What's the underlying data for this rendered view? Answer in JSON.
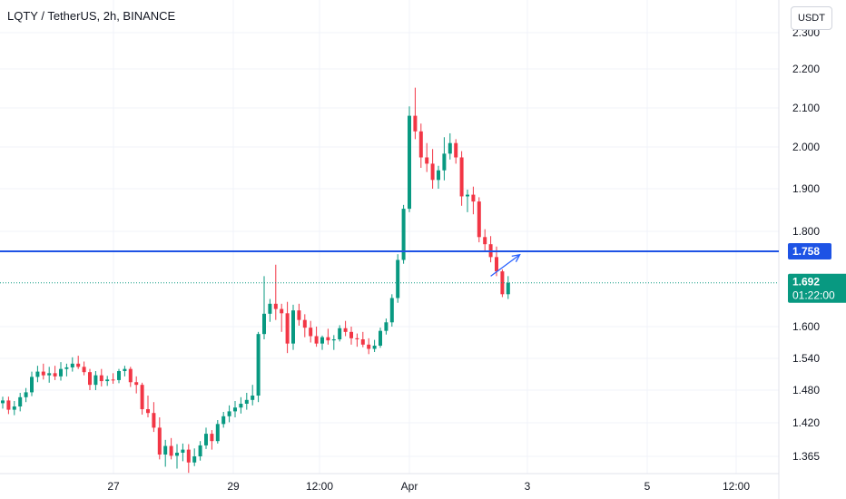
{
  "header": {
    "title": "LQTY / TetherUS, 2h, BINANCE",
    "currency": "USDT"
  },
  "chart_data": {
    "type": "candlestick",
    "symbol": "LQTY / TetherUS",
    "interval": "2h",
    "exchange": "BINANCE",
    "y_ticks": [
      "2.300",
      "2.200",
      "2.100",
      "2.000",
      "1.900",
      "1.800",
      "1.600",
      "1.540",
      "1.480",
      "1.420",
      "1.365"
    ],
    "x_ticks": [
      "27",
      "29",
      "12:00",
      "Apr",
      "3",
      "5",
      "12:00"
    ],
    "ylim": [
      1.345,
      2.31
    ],
    "grid": true,
    "horizontal_line": {
      "value": 1.758,
      "label": "1.758",
      "color": "#1e53e5"
    },
    "current_price": {
      "value": 1.692,
      "label": "1.692",
      "countdown": "01:22:00",
      "color": "#089981"
    },
    "projection_arrow": {
      "from": {
        "index": 84,
        "price": 1.706
      },
      "to": {
        "index": 89,
        "price": 1.751
      }
    },
    "colors": {
      "up": "#089981",
      "down": "#f23645"
    },
    "candles": [
      [
        1.456,
        1.468,
        1.446,
        1.461
      ],
      [
        1.461,
        1.468,
        1.436,
        1.444
      ],
      [
        1.444,
        1.46,
        1.434,
        1.45
      ],
      [
        1.45,
        1.475,
        1.441,
        1.467
      ],
      [
        1.467,
        1.484,
        1.458,
        1.476
      ],
      [
        1.476,
        1.515,
        1.469,
        1.505
      ],
      [
        1.505,
        1.526,
        1.495,
        1.515
      ],
      [
        1.515,
        1.53,
        1.5,
        1.508
      ],
      [
        1.508,
        1.524,
        1.494,
        1.512
      ],
      [
        1.512,
        1.526,
        1.499,
        1.506
      ],
      [
        1.506,
        1.533,
        1.498,
        1.52
      ],
      [
        1.52,
        1.53,
        1.506,
        1.523
      ],
      [
        1.523,
        1.542,
        1.515,
        1.53
      ],
      [
        1.53,
        1.545,
        1.52,
        1.524
      ],
      [
        1.524,
        1.534,
        1.508,
        1.514
      ],
      [
        1.514,
        1.52,
        1.48,
        1.49
      ],
      [
        1.49,
        1.516,
        1.48,
        1.508
      ],
      [
        1.508,
        1.52,
        1.487,
        1.497
      ],
      [
        1.497,
        1.507,
        1.488,
        1.5
      ],
      [
        1.5,
        1.512,
        1.492,
        1.499
      ],
      [
        1.499,
        1.52,
        1.493,
        1.516
      ],
      [
        1.516,
        1.526,
        1.506,
        1.52
      ],
      [
        1.52,
        1.524,
        1.486,
        1.495
      ],
      [
        1.495,
        1.506,
        1.474,
        1.49
      ],
      [
        1.49,
        1.494,
        1.435,
        1.445
      ],
      [
        1.445,
        1.47,
        1.43,
        1.438
      ],
      [
        1.438,
        1.458,
        1.405,
        1.412
      ],
      [
        1.412,
        1.43,
        1.36,
        1.368
      ],
      [
        1.368,
        1.392,
        1.348,
        1.382
      ],
      [
        1.382,
        1.395,
        1.36,
        1.366
      ],
      [
        1.366,
        1.385,
        1.345,
        1.371
      ],
      [
        1.371,
        1.386,
        1.357,
        1.376
      ],
      [
        1.376,
        1.385,
        1.338,
        1.355
      ],
      [
        1.355,
        1.378,
        1.349,
        1.365
      ],
      [
        1.365,
        1.39,
        1.358,
        1.383
      ],
      [
        1.383,
        1.412,
        1.377,
        1.402
      ],
      [
        1.402,
        1.408,
        1.376,
        1.39
      ],
      [
        1.39,
        1.425,
        1.386,
        1.418
      ],
      [
        1.418,
        1.44,
        1.412,
        1.432
      ],
      [
        1.432,
        1.452,
        1.421,
        1.441
      ],
      [
        1.441,
        1.46,
        1.43,
        1.448
      ],
      [
        1.448,
        1.467,
        1.437,
        1.455
      ],
      [
        1.455,
        1.475,
        1.444,
        1.462
      ],
      [
        1.462,
        1.49,
        1.452,
        1.47
      ],
      [
        1.47,
        1.59,
        1.458,
        1.586
      ],
      [
        1.586,
        1.706,
        1.576,
        1.627
      ],
      [
        1.627,
        1.658,
        1.61,
        1.648
      ],
      [
        1.648,
        1.73,
        1.614,
        1.637
      ],
      [
        1.637,
        1.648,
        1.59,
        1.628
      ],
      [
        1.628,
        1.652,
        1.55,
        1.568
      ],
      [
        1.568,
        1.646,
        1.556,
        1.634
      ],
      [
        1.634,
        1.648,
        1.602,
        1.614
      ],
      [
        1.614,
        1.626,
        1.58,
        1.598
      ],
      [
        1.598,
        1.612,
        1.57,
        1.582
      ],
      [
        1.582,
        1.6,
        1.562,
        1.568
      ],
      [
        1.568,
        1.583,
        1.556,
        1.58
      ],
      [
        1.58,
        1.596,
        1.566,
        1.574
      ],
      [
        1.574,
        1.584,
        1.556,
        1.576
      ],
      [
        1.576,
        1.603,
        1.572,
        1.597
      ],
      [
        1.597,
        1.612,
        1.582,
        1.59
      ],
      [
        1.59,
        1.6,
        1.566,
        1.578
      ],
      [
        1.578,
        1.587,
        1.562,
        1.576
      ],
      [
        1.576,
        1.59,
        1.561,
        1.566
      ],
      [
        1.566,
        1.578,
        1.548,
        1.558
      ],
      [
        1.558,
        1.575,
        1.552,
        1.564
      ],
      [
        1.564,
        1.598,
        1.56,
        1.592
      ],
      [
        1.592,
        1.617,
        1.585,
        1.609
      ],
      [
        1.609,
        1.668,
        1.6,
        1.66
      ],
      [
        1.66,
        1.752,
        1.65,
        1.74
      ],
      [
        1.74,
        1.862,
        1.732,
        1.853
      ],
      [
        1.853,
        2.104,
        1.845,
        2.08
      ],
      [
        2.08,
        2.152,
        2.02,
        2.04
      ],
      [
        2.04,
        2.06,
        1.95,
        1.975
      ],
      [
        1.975,
        2.01,
        1.94,
        1.96
      ],
      [
        1.96,
        1.995,
        1.9,
        1.921
      ],
      [
        1.921,
        1.955,
        1.9,
        1.944
      ],
      [
        1.944,
        2.025,
        1.92,
        1.984
      ],
      [
        1.984,
        2.035,
        1.97,
        2.01
      ],
      [
        2.01,
        2.02,
        1.96,
        1.975
      ],
      [
        1.975,
        1.99,
        1.86,
        1.882
      ],
      [
        1.882,
        1.898,
        1.845,
        1.886
      ],
      [
        1.886,
        1.905,
        1.84,
        1.87
      ],
      [
        1.87,
        1.88,
        1.777,
        1.788
      ],
      [
        1.788,
        1.805,
        1.758,
        1.773
      ],
      [
        1.773,
        1.79,
        1.735,
        1.746
      ],
      [
        1.746,
        1.768,
        1.706,
        1.716
      ],
      [
        1.716,
        1.72,
        1.662,
        1.668
      ],
      [
        1.668,
        1.706,
        1.658,
        1.692
      ]
    ]
  }
}
